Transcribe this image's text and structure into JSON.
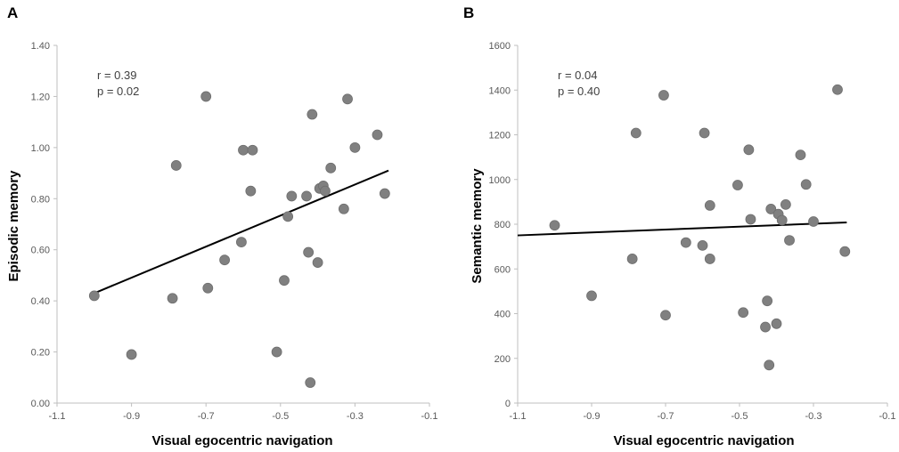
{
  "chart_data": [
    {
      "type": "scatter",
      "panel_label": "A",
      "title": "",
      "xlabel": "Visual egocentric navigation",
      "ylabel": "Episodic memory",
      "xlim": [
        -1.1,
        -0.1
      ],
      "ylim": [
        0.0,
        1.4
      ],
      "x_ticks": [
        "-1.1",
        "-0.9",
        "-0.7",
        "-0.5",
        "-0.3",
        "-0.1"
      ],
      "y_ticks": [
        "0.00",
        "0.20",
        "0.40",
        "0.60",
        "0.80",
        "1.00",
        "1.20",
        "1.40"
      ],
      "x_tick_values": [
        -1.1,
        -0.9,
        -0.7,
        -0.5,
        -0.3,
        -0.1
      ],
      "y_tick_values": [
        0,
        0.2,
        0.4,
        0.6,
        0.8,
        1.0,
        1.2,
        1.4
      ],
      "annotations": [
        "r = 0.39",
        "p = 0.02"
      ],
      "trendline": {
        "x": [
          -1.0,
          -0.21
        ],
        "y": [
          0.43,
          0.91
        ]
      },
      "marker_color": "#808080",
      "points": [
        {
          "x": -1.0,
          "y": 0.42
        },
        {
          "x": -0.9,
          "y": 0.19
        },
        {
          "x": -0.79,
          "y": 0.41
        },
        {
          "x": -0.78,
          "y": 0.93
        },
        {
          "x": -0.7,
          "y": 1.2
        },
        {
          "x": -0.695,
          "y": 0.45
        },
        {
          "x": -0.65,
          "y": 0.56
        },
        {
          "x": -0.605,
          "y": 0.63
        },
        {
          "x": -0.6,
          "y": 0.99
        },
        {
          "x": -0.58,
          "y": 0.83
        },
        {
          "x": -0.575,
          "y": 0.99
        },
        {
          "x": -0.51,
          "y": 0.2
        },
        {
          "x": -0.49,
          "y": 0.48
        },
        {
          "x": -0.48,
          "y": 0.73
        },
        {
          "x": -0.47,
          "y": 0.81
        },
        {
          "x": -0.43,
          "y": 0.81
        },
        {
          "x": -0.425,
          "y": 0.59
        },
        {
          "x": -0.42,
          "y": 0.08
        },
        {
          "x": -0.415,
          "y": 1.13
        },
        {
          "x": -0.4,
          "y": 0.55
        },
        {
          "x": -0.395,
          "y": 0.84
        },
        {
          "x": -0.385,
          "y": 0.85
        },
        {
          "x": -0.38,
          "y": 0.83
        },
        {
          "x": -0.365,
          "y": 0.92
        },
        {
          "x": -0.33,
          "y": 0.76
        },
        {
          "x": -0.32,
          "y": 1.19
        },
        {
          "x": -0.3,
          "y": 1.0
        },
        {
          "x": -0.24,
          "y": 1.05
        },
        {
          "x": -0.22,
          "y": 0.82
        }
      ]
    },
    {
      "type": "scatter",
      "panel_label": "B",
      "title": "",
      "xlabel": "Visual egocentric navigation",
      "ylabel": "Semantic memory",
      "xlim": [
        -1.1,
        -0.1
      ],
      "ylim": [
        0,
        1600
      ],
      "x_ticks": [
        "-1.1",
        "-0.9",
        "-0.7",
        "-0.5",
        "-0.3",
        "-0.1"
      ],
      "y_ticks": [
        "0",
        "200",
        "400",
        "600",
        "800",
        "1000",
        "1200",
        "1400",
        "1600"
      ],
      "x_tick_values": [
        -1.1,
        -0.9,
        -0.7,
        -0.5,
        -0.3,
        -0.1
      ],
      "y_tick_values": [
        0,
        200,
        400,
        600,
        800,
        1000,
        1200,
        1400,
        1600
      ],
      "annotations": [
        "r = 0.04",
        "p = 0.40"
      ],
      "trendline": {
        "x": [
          -1.1,
          -0.21
        ],
        "y": [
          750,
          808
        ]
      },
      "marker_color": "#808080",
      "points": [
        {
          "x": -1.0,
          "y": 795
        },
        {
          "x": -0.9,
          "y": 480
        },
        {
          "x": -0.79,
          "y": 645
        },
        {
          "x": -0.78,
          "y": 1208
        },
        {
          "x": -0.705,
          "y": 1377
        },
        {
          "x": -0.7,
          "y": 393
        },
        {
          "x": -0.645,
          "y": 718
        },
        {
          "x": -0.6,
          "y": 705
        },
        {
          "x": -0.595,
          "y": 1208
        },
        {
          "x": -0.58,
          "y": 884
        },
        {
          "x": -0.58,
          "y": 645
        },
        {
          "x": -0.505,
          "y": 975
        },
        {
          "x": -0.49,
          "y": 405
        },
        {
          "x": -0.475,
          "y": 1133
        },
        {
          "x": -0.47,
          "y": 822
        },
        {
          "x": -0.43,
          "y": 340
        },
        {
          "x": -0.425,
          "y": 457
        },
        {
          "x": -0.42,
          "y": 170
        },
        {
          "x": -0.415,
          "y": 868
        },
        {
          "x": -0.4,
          "y": 355
        },
        {
          "x": -0.395,
          "y": 845
        },
        {
          "x": -0.385,
          "y": 818
        },
        {
          "x": -0.375,
          "y": 888
        },
        {
          "x": -0.365,
          "y": 728
        },
        {
          "x": -0.335,
          "y": 1110
        },
        {
          "x": -0.32,
          "y": 978
        },
        {
          "x": -0.3,
          "y": 812
        },
        {
          "x": -0.235,
          "y": 1402
        },
        {
          "x": -0.215,
          "y": 678
        }
      ]
    }
  ]
}
